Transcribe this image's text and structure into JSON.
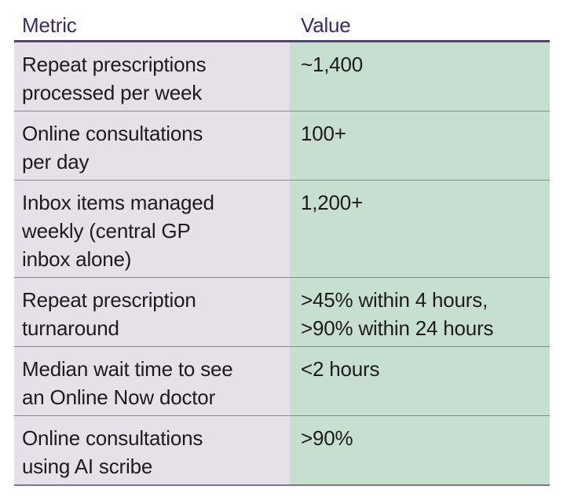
{
  "table": {
    "header": {
      "metric_label": "Metric",
      "value_label": "Value"
    },
    "rows": [
      {
        "metric": "Repeat prescriptions\nprocessed per week",
        "value": "~1,400"
      },
      {
        "metric": "Online consultations\nper day",
        "value": "100+"
      },
      {
        "metric": "Inbox items managed\nweekly (central GP\ninbox alone)",
        "value": "1,200+"
      },
      {
        "metric": "Repeat prescription\nturnaround",
        "value": ">45% within 4 hours,\n>90% within 24 hours"
      },
      {
        "metric": "Median wait time to see\nan Online Now doctor",
        "value": "<2 hours"
      },
      {
        "metric": "Online consultations\nusing AI scribe",
        "value": ">90%"
      }
    ],
    "colors": {
      "header_text": "#3a2a6e",
      "header_rule": "#54407f",
      "metric_column_bg": "#e6e0e9",
      "value_column_bg": "#c6dfd1",
      "row_divider": "#8d80a6",
      "bottom_rule": "#7e7198",
      "body_text": "#1c1c1e",
      "page_bg": "#ffffff"
    }
  },
  "chart_data": {
    "type": "table",
    "columns": [
      "Metric",
      "Value"
    ],
    "rows": [
      [
        "Repeat prescriptions processed per week",
        "~1,400"
      ],
      [
        "Online consultations per day",
        "100+"
      ],
      [
        "Inbox items managed weekly (central GP inbox alone)",
        "1,200+"
      ],
      [
        "Repeat prescription turnaround",
        ">45% within 4 hours, >90% within 24 hours"
      ],
      [
        "Median wait time to see an Online Now doctor",
        "<2 hours"
      ],
      [
        "Online consultations using AI scribe",
        ">90%"
      ]
    ]
  }
}
